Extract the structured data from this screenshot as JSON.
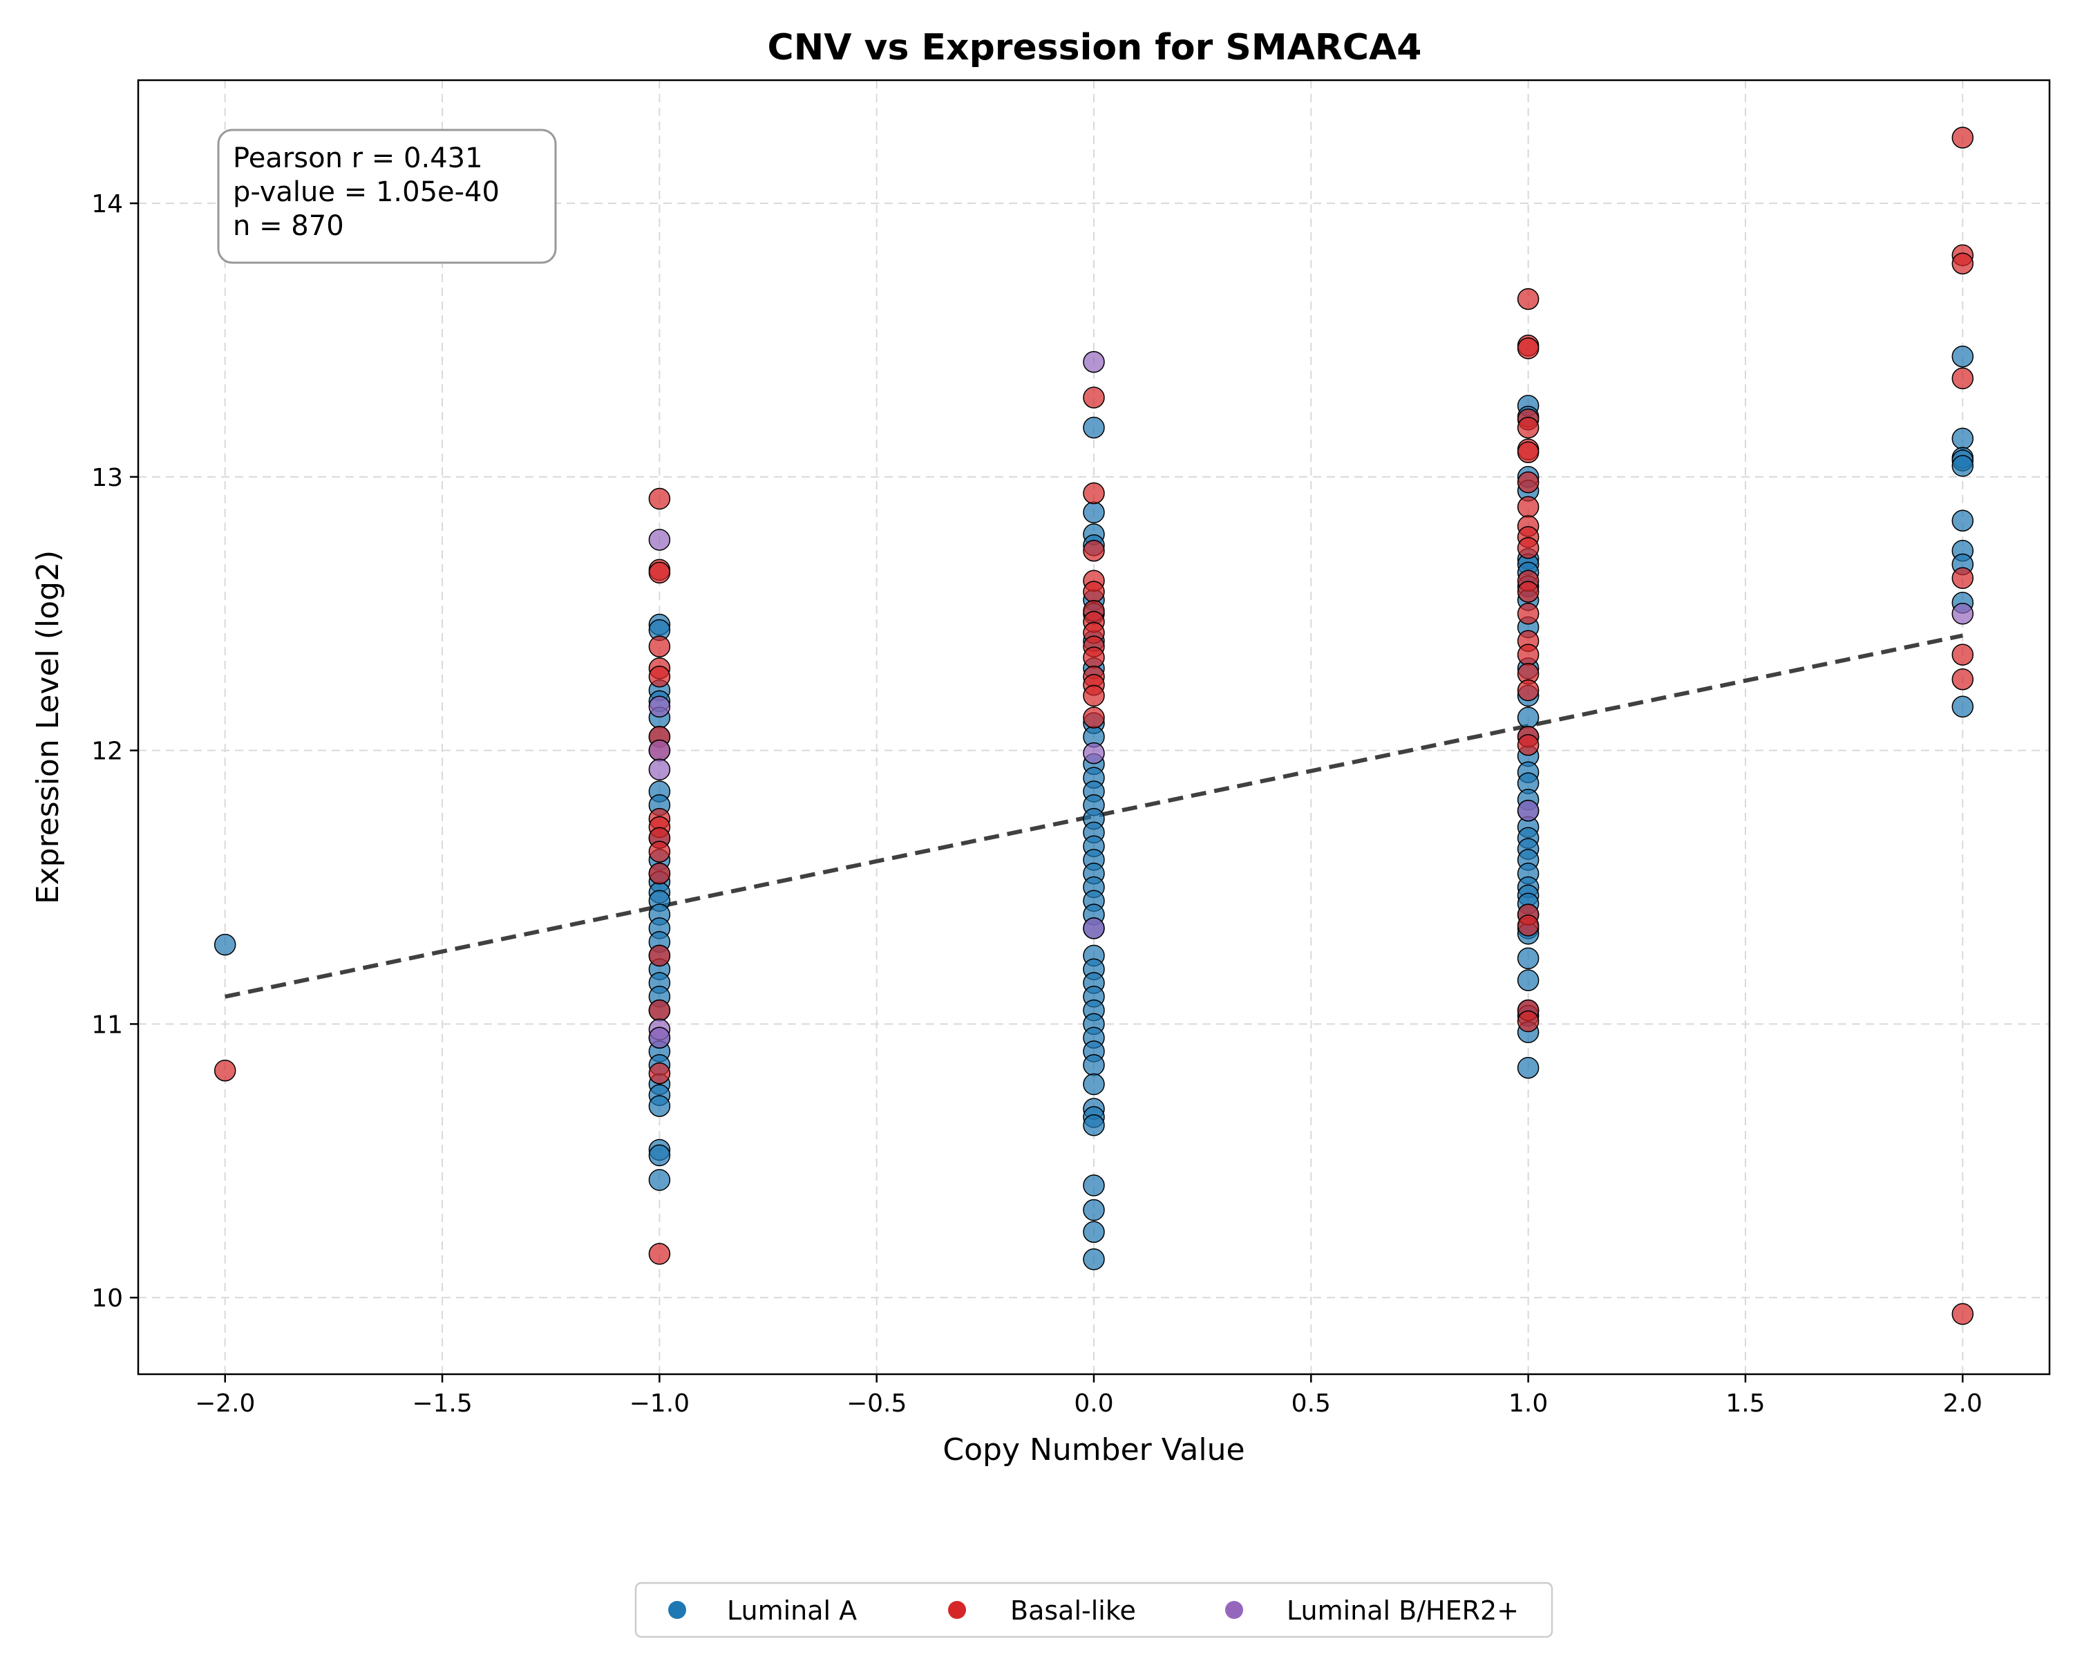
{
  "chart_data": {
    "type": "scatter",
    "title": "CNV vs Expression for SMARCA4",
    "xlabel": "Copy Number Value",
    "ylabel": "Expression Level (log2)",
    "xlim": [
      -2.2,
      2.2
    ],
    "ylim": [
      9.72,
      14.45
    ],
    "x_ticks": [
      -2.0,
      -1.5,
      -1.0,
      -0.5,
      0.0,
      0.5,
      1.0,
      1.5,
      2.0
    ],
    "x_tick_labels": [
      "−2.0",
      "−1.5",
      "−1.0",
      "−0.5",
      "0.0",
      "0.5",
      "1.0",
      "1.5",
      "2.0"
    ],
    "y_ticks": [
      10,
      11,
      12,
      13,
      14
    ],
    "y_tick_labels": [
      "10",
      "11",
      "12",
      "13",
      "14"
    ],
    "grid": true,
    "legend_position": "bottom-center",
    "stats": {
      "pearson": "Pearson r = 0.431",
      "pvalue": "p-value = 1.05e-40",
      "n": "n = 870"
    },
    "trendline": {
      "x": [
        -2.0,
        2.0
      ],
      "y": [
        11.1,
        12.42
      ],
      "color": "#404040",
      "style": "dashed"
    },
    "series": [
      {
        "name": "Luminal A",
        "color": "#1f77b4",
        "points": [
          [
            -2.0,
            11.29
          ],
          [
            -1.0,
            12.46
          ],
          [
            -1.0,
            12.44
          ],
          [
            -1.0,
            12.22
          ],
          [
            -1.0,
            12.18
          ],
          [
            -1.0,
            12.12
          ],
          [
            -1.0,
            12.05
          ],
          [
            -1.0,
            11.85
          ],
          [
            -1.0,
            11.8
          ],
          [
            -1.0,
            11.68
          ],
          [
            -1.0,
            11.6
          ],
          [
            -1.0,
            11.55
          ],
          [
            -1.0,
            11.52
          ],
          [
            -1.0,
            11.48
          ],
          [
            -1.0,
            11.45
          ],
          [
            -1.0,
            11.4
          ],
          [
            -1.0,
            11.35
          ],
          [
            -1.0,
            11.3
          ],
          [
            -1.0,
            11.25
          ],
          [
            -1.0,
            11.2
          ],
          [
            -1.0,
            11.15
          ],
          [
            -1.0,
            11.1
          ],
          [
            -1.0,
            11.05
          ],
          [
            -1.0,
            10.95
          ],
          [
            -1.0,
            10.9
          ],
          [
            -1.0,
            10.85
          ],
          [
            -1.0,
            10.78
          ],
          [
            -1.0,
            10.74
          ],
          [
            -1.0,
            10.7
          ],
          [
            -1.0,
            10.54
          ],
          [
            -1.0,
            10.52
          ],
          [
            -1.0,
            10.43
          ],
          [
            0.0,
            13.18
          ],
          [
            0.0,
            12.87
          ],
          [
            0.0,
            12.79
          ],
          [
            0.0,
            12.75
          ],
          [
            0.0,
            12.55
          ],
          [
            0.0,
            12.5
          ],
          [
            0.0,
            12.4
          ],
          [
            0.0,
            12.3
          ],
          [
            0.0,
            12.1
          ],
          [
            0.0,
            12.05
          ],
          [
            0.0,
            11.95
          ],
          [
            0.0,
            11.9
          ],
          [
            0.0,
            11.85
          ],
          [
            0.0,
            11.8
          ],
          [
            0.0,
            11.75
          ],
          [
            0.0,
            11.7
          ],
          [
            0.0,
            11.65
          ],
          [
            0.0,
            11.6
          ],
          [
            0.0,
            11.55
          ],
          [
            0.0,
            11.5
          ],
          [
            0.0,
            11.45
          ],
          [
            0.0,
            11.4
          ],
          [
            0.0,
            11.35
          ],
          [
            0.0,
            11.25
          ],
          [
            0.0,
            11.2
          ],
          [
            0.0,
            11.15
          ],
          [
            0.0,
            11.1
          ],
          [
            0.0,
            11.05
          ],
          [
            0.0,
            11.0
          ],
          [
            0.0,
            10.95
          ],
          [
            0.0,
            10.9
          ],
          [
            0.0,
            10.85
          ],
          [
            0.0,
            10.78
          ],
          [
            0.0,
            10.69
          ],
          [
            0.0,
            10.66
          ],
          [
            0.0,
            10.63
          ],
          [
            0.0,
            10.41
          ],
          [
            0.0,
            10.32
          ],
          [
            0.0,
            10.24
          ],
          [
            0.0,
            10.14
          ],
          [
            1.0,
            13.26
          ],
          [
            1.0,
            13.22
          ],
          [
            1.0,
            13.0
          ],
          [
            1.0,
            12.95
          ],
          [
            1.0,
            12.7
          ],
          [
            1.0,
            12.68
          ],
          [
            1.0,
            12.65
          ],
          [
            1.0,
            12.6
          ],
          [
            1.0,
            12.55
          ],
          [
            1.0,
            12.45
          ],
          [
            1.0,
            12.3
          ],
          [
            1.0,
            12.2
          ],
          [
            1.0,
            12.12
          ],
          [
            1.0,
            12.05
          ],
          [
            1.0,
            11.98
          ],
          [
            1.0,
            11.92
          ],
          [
            1.0,
            11.88
          ],
          [
            1.0,
            11.82
          ],
          [
            1.0,
            11.78
          ],
          [
            1.0,
            11.72
          ],
          [
            1.0,
            11.68
          ],
          [
            1.0,
            11.64
          ],
          [
            1.0,
            11.6
          ],
          [
            1.0,
            11.55
          ],
          [
            1.0,
            11.5
          ],
          [
            1.0,
            11.47
          ],
          [
            1.0,
            11.44
          ],
          [
            1.0,
            11.4
          ],
          [
            1.0,
            11.35
          ],
          [
            1.0,
            11.33
          ],
          [
            1.0,
            11.24
          ],
          [
            1.0,
            11.16
          ],
          [
            1.0,
            11.05
          ],
          [
            1.0,
            11.03
          ],
          [
            1.0,
            10.97
          ],
          [
            1.0,
            10.84
          ],
          [
            2.0,
            13.44
          ],
          [
            2.0,
            13.14
          ],
          [
            2.0,
            13.07
          ],
          [
            2.0,
            13.06
          ],
          [
            2.0,
            13.04
          ],
          [
            2.0,
            12.84
          ],
          [
            2.0,
            12.73
          ],
          [
            2.0,
            12.68
          ],
          [
            2.0,
            12.54
          ],
          [
            2.0,
            12.16
          ]
        ]
      },
      {
        "name": "Basal-like",
        "color": "#d62728",
        "points": [
          [
            -2.0,
            10.83
          ],
          [
            -1.0,
            12.92
          ],
          [
            -1.0,
            12.66
          ],
          [
            -1.0,
            12.65
          ],
          [
            -1.0,
            12.38
          ],
          [
            -1.0,
            12.3
          ],
          [
            -1.0,
            12.27
          ],
          [
            -1.0,
            12.05
          ],
          [
            -1.0,
            12.0
          ],
          [
            -1.0,
            11.75
          ],
          [
            -1.0,
            11.72
          ],
          [
            -1.0,
            11.68
          ],
          [
            -1.0,
            11.63
          ],
          [
            -1.0,
            11.55
          ],
          [
            -1.0,
            11.25
          ],
          [
            -1.0,
            11.05
          ],
          [
            -1.0,
            10.82
          ],
          [
            -1.0,
            10.16
          ],
          [
            0.0,
            13.29
          ],
          [
            0.0,
            12.94
          ],
          [
            0.0,
            12.73
          ],
          [
            0.0,
            12.62
          ],
          [
            0.0,
            12.58
          ],
          [
            0.0,
            12.51
          ],
          [
            0.0,
            12.47
          ],
          [
            0.0,
            12.43
          ],
          [
            0.0,
            12.38
          ],
          [
            0.0,
            12.34
          ],
          [
            0.0,
            12.27
          ],
          [
            0.0,
            12.24
          ],
          [
            0.0,
            12.2
          ],
          [
            0.0,
            12.12
          ],
          [
            1.0,
            13.65
          ],
          [
            1.0,
            13.48
          ],
          [
            1.0,
            13.47
          ],
          [
            1.0,
            13.21
          ],
          [
            1.0,
            13.18
          ],
          [
            1.0,
            13.1
          ],
          [
            1.0,
            13.09
          ],
          [
            1.0,
            12.98
          ],
          [
            1.0,
            12.89
          ],
          [
            1.0,
            12.82
          ],
          [
            1.0,
            12.78
          ],
          [
            1.0,
            12.74
          ],
          [
            1.0,
            12.62
          ],
          [
            1.0,
            12.58
          ],
          [
            1.0,
            12.5
          ],
          [
            1.0,
            12.4
          ],
          [
            1.0,
            12.35
          ],
          [
            1.0,
            12.28
          ],
          [
            1.0,
            12.22
          ],
          [
            1.0,
            12.05
          ],
          [
            1.0,
            12.02
          ],
          [
            1.0,
            11.4
          ],
          [
            1.0,
            11.36
          ],
          [
            1.0,
            11.05
          ],
          [
            1.0,
            11.01
          ],
          [
            2.0,
            14.24
          ],
          [
            2.0,
            13.81
          ],
          [
            2.0,
            13.78
          ],
          [
            2.0,
            13.36
          ],
          [
            2.0,
            12.63
          ],
          [
            2.0,
            12.35
          ],
          [
            2.0,
            12.26
          ],
          [
            2.0,
            9.94
          ]
        ]
      },
      {
        "name": "Luminal B/HER2+",
        "color": "#9467bd",
        "points": [
          [
            -1.0,
            12.77
          ],
          [
            -1.0,
            12.16
          ],
          [
            -1.0,
            12.0
          ],
          [
            -1.0,
            11.93
          ],
          [
            -1.0,
            10.98
          ],
          [
            -1.0,
            10.95
          ],
          [
            0.0,
            13.42
          ],
          [
            0.0,
            11.99
          ],
          [
            0.0,
            11.35
          ],
          [
            1.0,
            11.78
          ],
          [
            2.0,
            12.5
          ]
        ]
      }
    ]
  }
}
